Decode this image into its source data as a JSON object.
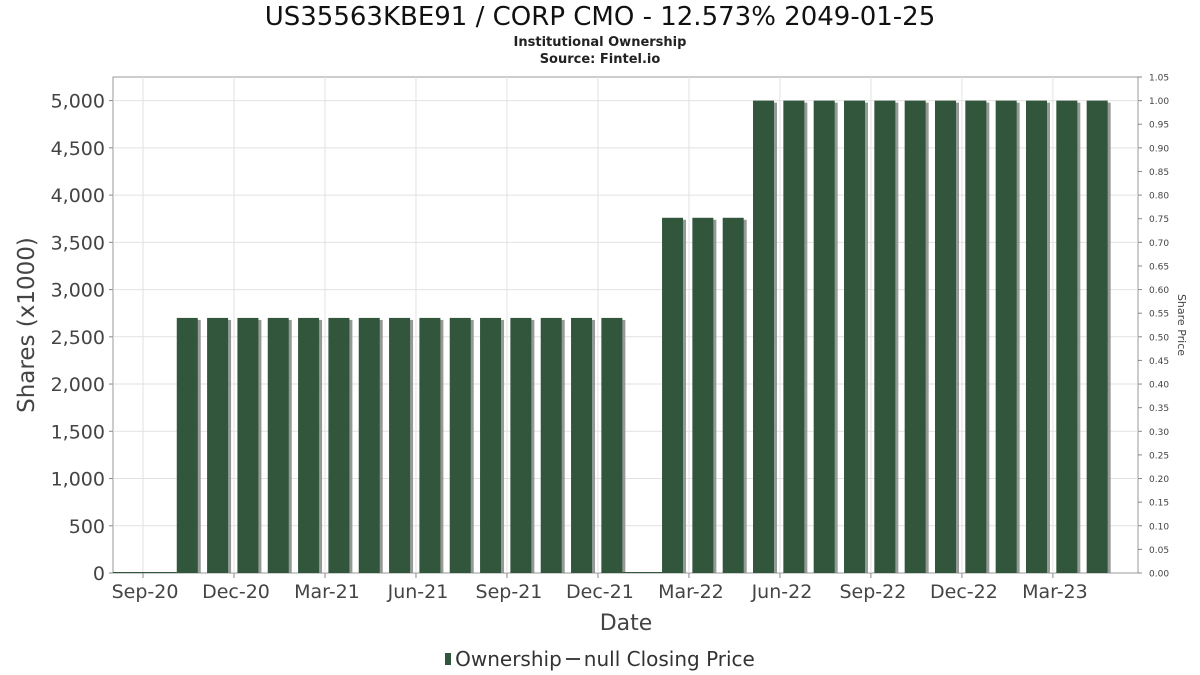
{
  "chart_data": {
    "type": "bar",
    "title": "US35563KBE91 / CORP CMO - 12.573% 2049-01-25",
    "subtitle": "Institutional Ownership",
    "source": "Source: Fintel.io",
    "xlabel": "Date",
    "ylabel": "Shares (x1000)",
    "y2label": "Share Price",
    "ylim": [
      0,
      5250
    ],
    "y2lim": [
      0,
      1.05
    ],
    "yticks": [
      "0",
      "500",
      "1,000",
      "1,500",
      "2,000",
      "2,500",
      "3,000",
      "3,500",
      "4,000",
      "4,500",
      "5,000"
    ],
    "y2ticks": [
      "0.00",
      "0.05",
      "0.10",
      "0.15",
      "0.20",
      "0.25",
      "0.30",
      "0.35",
      "0.40",
      "0.45",
      "0.50",
      "0.55",
      "0.60",
      "0.65",
      "0.70",
      "0.75",
      "0.80",
      "0.85",
      "0.90",
      "0.95",
      "1.00",
      "1.05"
    ],
    "xticks": [
      "Sep-20",
      "Dec-20",
      "Mar-21",
      "Jun-21",
      "Sep-21",
      "Dec-21",
      "Mar-22",
      "Jun-22",
      "Sep-22",
      "Dec-22",
      "Mar-23"
    ],
    "grid": true,
    "legend_position": "bottom-center",
    "bar_color": "#31563c",
    "series": [
      {
        "name": "Ownership",
        "dates": [
          "2020-10-15",
          "2020-11-15",
          "2020-12-15",
          "2021-01-15",
          "2021-02-15",
          "2021-03-15",
          "2021-04-15",
          "2021-05-15",
          "2021-06-15",
          "2021-07-15",
          "2021-08-15",
          "2021-09-15",
          "2021-10-15",
          "2021-11-15",
          "2021-12-15",
          "2022-01-15",
          "2022-02-15",
          "2022-03-15",
          "2022-04-15",
          "2022-05-15",
          "2022-06-15",
          "2022-07-15",
          "2022-08-15",
          "2022-09-15",
          "2022-10-15",
          "2022-11-15",
          "2022-12-15",
          "2023-01-15",
          "2023-02-15",
          "2023-03-15",
          "2023-04-15"
        ],
        "values": [
          2700,
          2700,
          2700,
          2700,
          2700,
          2700,
          2700,
          2700,
          2700,
          2700,
          2700,
          2700,
          2700,
          2700,
          2700,
          0,
          3760,
          3760,
          3760,
          5000,
          5000,
          5000,
          5000,
          5000,
          5000,
          5000,
          5000,
          5000,
          5000,
          5000,
          5000
        ]
      }
    ],
    "legend": {
      "ownership": "Ownership",
      "closing_price": "null Closing Price"
    }
  }
}
